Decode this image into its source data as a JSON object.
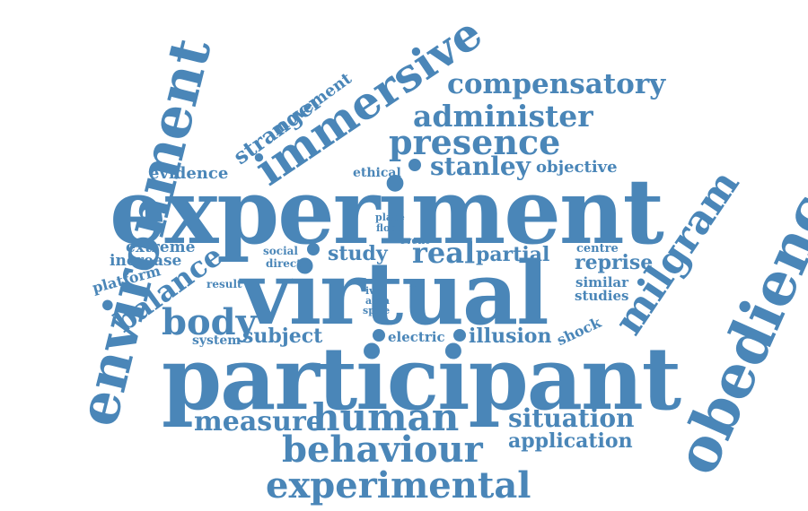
{
  "color": "#4a86b8",
  "background": "#ffffff",
  "words": {
    "experiment": "experiment",
    "virtual": "virtual",
    "participant": "participant",
    "environment": "environment",
    "obedience": "obedience",
    "immersive": "immersive",
    "milgram": "milgram",
    "presence": "presence",
    "compensatory": "compensatory",
    "administer": "administer",
    "stanley": "stanley",
    "objective": "objective",
    "human": "human",
    "behaviour": "behaviour",
    "experimental": "experimental",
    "situation": "situation",
    "application": "application",
    "measure": "measure",
    "balance": "balance",
    "body": "body",
    "stranger": "stranger",
    "movement": "movement",
    "evidence": "evidence",
    "ethical": "ethical",
    "place": "place",
    "floor": "floor",
    "event": "event",
    "extreme": "extreme",
    "increase": "increase",
    "platform": "platform",
    "social": "social",
    "direct": "direct",
    "study": "study",
    "real": "real",
    "partial": "partial",
    "centre": "centre",
    "reprise": "reprise",
    "result": "result",
    "ivrs": "ivrs",
    "area": "area",
    "spite": "spite",
    "full": "full",
    "similar": "similar",
    "studies": "studies",
    "system": "system",
    "subject": "subject",
    "electric": "electric",
    "illusion": "illusion",
    "shock": "shock"
  }
}
